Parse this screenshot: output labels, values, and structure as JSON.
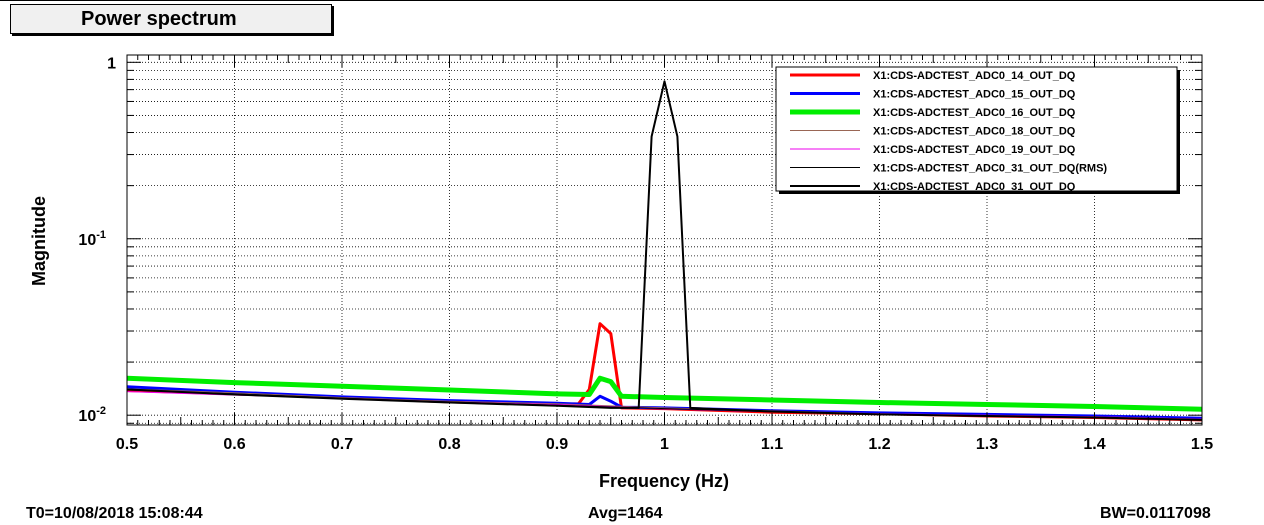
{
  "title": "Power spectrum",
  "footer": {
    "t0": "T0=10/08/2018 15:08:44",
    "avg": "Avg=1464",
    "bw": "BW=0.0117098"
  },
  "chart_data": {
    "type": "line",
    "xlabel": "Frequency (Hz)",
    "ylabel": "Magnitude",
    "xlim": [
      0.5,
      1.5
    ],
    "ylim": [
      0.0088,
      1.1
    ],
    "yscale": "log",
    "grid": true,
    "legend_position": "top-right",
    "xticks": [
      "0.5",
      "0.6",
      "0.7",
      "0.8",
      "0.9",
      "1",
      "1.1",
      "1.2",
      "1.3",
      "1.4",
      "1.5"
    ],
    "yticks": [
      {
        "value": 0.01,
        "base": "10",
        "exp": "-2"
      },
      {
        "value": 0.1,
        "base": "10",
        "exp": "-1"
      },
      {
        "value": 1,
        "base": "1",
        "exp": ""
      }
    ],
    "series": [
      {
        "name": "X1:CDS-ADCTEST_ADC0_14_OUT_DQ",
        "color": "#ff0000",
        "width": 3,
        "x": [
          0.5,
          0.6,
          0.7,
          0.8,
          0.9,
          0.92,
          0.93,
          0.94,
          0.95,
          0.96,
          1.0,
          1.1,
          1.2,
          1.3,
          1.4,
          1.5
        ],
        "y": [
          0.0138,
          0.0132,
          0.0126,
          0.0119,
          0.0115,
          0.0116,
          0.014,
          0.033,
          0.029,
          0.011,
          0.0109,
          0.0104,
          0.0102,
          0.0099,
          0.0097,
          0.0094
        ]
      },
      {
        "name": "X1:CDS-ADCTEST_ADC0_15_OUT_DQ",
        "color": "#0000ff",
        "width": 3,
        "x": [
          0.5,
          0.6,
          0.7,
          0.8,
          0.9,
          0.93,
          0.94,
          0.95,
          0.96,
          1.0,
          1.1,
          1.2,
          1.3,
          1.4,
          1.5
        ],
        "y": [
          0.0145,
          0.0135,
          0.0127,
          0.0121,
          0.0117,
          0.0115,
          0.0128,
          0.012,
          0.0111,
          0.011,
          0.0106,
          0.0103,
          0.0101,
          0.0099,
          0.0096
        ]
      },
      {
        "name": "X1:CDS-ADCTEST_ADC0_16_OUT_DQ",
        "color": "#00ee00",
        "width": 5,
        "x": [
          0.5,
          0.6,
          0.7,
          0.8,
          0.9,
          0.93,
          0.94,
          0.95,
          0.96,
          1.0,
          1.1,
          1.2,
          1.3,
          1.4,
          1.5
        ],
        "y": [
          0.0162,
          0.0153,
          0.0146,
          0.0139,
          0.0132,
          0.0131,
          0.0162,
          0.0155,
          0.0128,
          0.0126,
          0.0122,
          0.0118,
          0.0115,
          0.0112,
          0.0108
        ]
      },
      {
        "name": "X1:CDS-ADCTEST_ADC0_18_OUT_DQ",
        "color": "#996655",
        "width": 1,
        "x": [
          0.5,
          0.6,
          0.7,
          0.8,
          0.9,
          1.0,
          1.1,
          1.2,
          1.3,
          1.4,
          1.5
        ],
        "y": [
          0.0141,
          0.0134,
          0.0126,
          0.012,
          0.0116,
          0.011,
          0.0106,
          0.0102,
          0.01,
          0.0098,
          0.0095
        ]
      },
      {
        "name": "X1:CDS-ADCTEST_ADC0_19_OUT_DQ",
        "color": "#ee00ee",
        "width": 1,
        "x": [
          0.5,
          0.6,
          0.7,
          0.8,
          0.9,
          1.0,
          1.1,
          1.2,
          1.3,
          1.4,
          1.5
        ],
        "y": [
          0.0136,
          0.013,
          0.0125,
          0.0119,
          0.0115,
          0.0109,
          0.0105,
          0.0102,
          0.01,
          0.0098,
          0.0095
        ]
      },
      {
        "name": "X1:CDS-ADCTEST_ADC0_31_OUT_DQ(RMS)",
        "color": "#000000",
        "width": 1,
        "x": [
          0.5,
          0.6,
          0.7,
          0.8,
          0.9,
          1.0,
          1.1,
          1.2,
          1.3,
          1.4,
          1.5
        ],
        "y": [
          0.0139,
          0.0132,
          0.0125,
          0.0119,
          0.0114,
          0.0109,
          0.0105,
          0.0101,
          0.0099,
          0.0097,
          0.0094
        ]
      },
      {
        "name": "X1:CDS-ADCTEST_ADC0_31_OUT_DQ",
        "color": "#000000",
        "width": 2,
        "x": [
          0.5,
          0.6,
          0.7,
          0.8,
          0.9,
          0.95,
          0.976,
          0.988,
          1.0,
          1.012,
          1.024,
          1.05,
          1.1,
          1.2,
          1.3,
          1.4,
          1.5
        ],
        "y": [
          0.014,
          0.0131,
          0.0124,
          0.0118,
          0.0113,
          0.011,
          0.011,
          0.38,
          0.78,
          0.38,
          0.011,
          0.0108,
          0.0105,
          0.0101,
          0.0099,
          0.0097,
          0.0094
        ]
      }
    ]
  }
}
